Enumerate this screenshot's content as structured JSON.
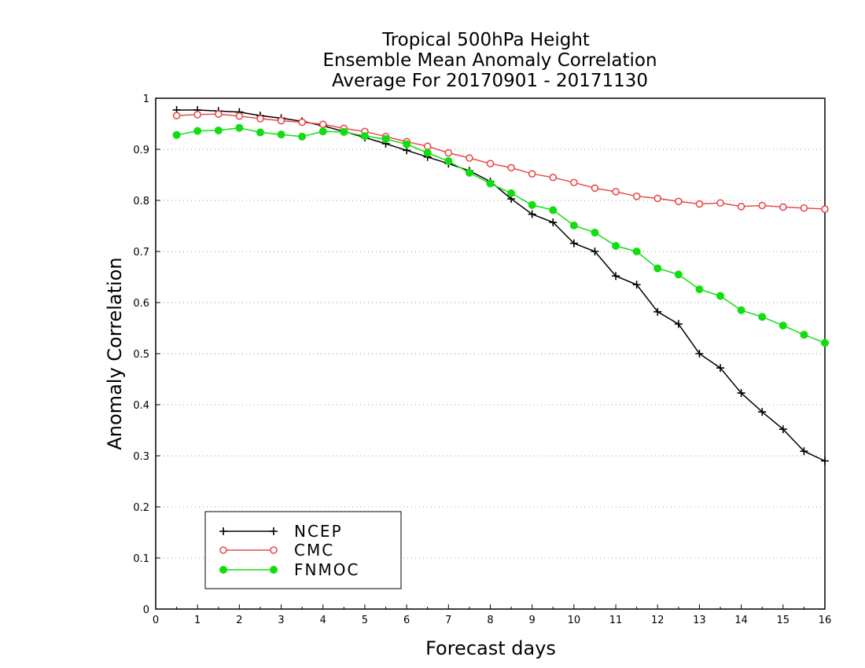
{
  "chart_data": {
    "type": "line",
    "title_lines": [
      "Tropical 500hPa Height",
      "Ensemble Mean Anomaly Correlation",
      "Average For 20170901 - 20171130"
    ],
    "xlabel": "Forecast days",
    "ylabel": "Anomaly Correlation",
    "xlim": [
      0,
      16
    ],
    "ylim": [
      0,
      1
    ],
    "x_ticks": [
      "0",
      "1",
      "2",
      "3",
      "4",
      "5",
      "6",
      "7",
      "8",
      "9",
      "10",
      "11",
      "12",
      "13",
      "14",
      "15",
      "16"
    ],
    "y_ticks": [
      "0",
      "0.1",
      "0.2",
      "0.3",
      "0.4",
      "0.5",
      "0.6",
      "0.7",
      "0.8",
      "0.9",
      "1"
    ],
    "grid": "horizontal-dotted",
    "legend_position": "bottom-left",
    "x": [
      0.5,
      1,
      1.5,
      2,
      2.5,
      3,
      3.5,
      4,
      4.5,
      5,
      5.5,
      6,
      6.5,
      7,
      7.5,
      8,
      8.5,
      9,
      9.5,
      10,
      10.5,
      11,
      11.5,
      12,
      12.5,
      13,
      13.5,
      14,
      14.5,
      15,
      15.5,
      16
    ],
    "series": [
      {
        "name": "NCEP",
        "color": "#000000",
        "marker": "plus",
        "values": [
          0.977,
          0.977,
          0.975,
          0.973,
          0.966,
          0.961,
          0.955,
          0.946,
          0.935,
          0.923,
          0.911,
          0.898,
          0.885,
          0.872,
          0.858,
          0.837,
          0.803,
          0.773,
          0.757,
          0.716,
          0.7,
          0.652,
          0.635,
          0.582,
          0.558,
          0.5,
          0.472,
          0.423,
          0.386,
          0.352,
          0.309,
          0.29
        ]
      },
      {
        "name": "CMC",
        "color": "#e84a4a",
        "marker": "open-circle",
        "values": [
          0.966,
          0.968,
          0.969,
          0.965,
          0.96,
          0.956,
          0.953,
          0.949,
          0.941,
          0.935,
          0.925,
          0.915,
          0.906,
          0.893,
          0.883,
          0.872,
          0.864,
          0.852,
          0.845,
          0.835,
          0.824,
          0.817,
          0.808,
          0.804,
          0.798,
          0.793,
          0.795,
          0.788,
          0.79,
          0.787,
          0.785,
          0.783
        ]
      },
      {
        "name": "FNMOC",
        "color": "#11dd11",
        "marker": "filled-circle",
        "values": [
          0.928,
          0.936,
          0.937,
          0.942,
          0.933,
          0.929,
          0.925,
          0.935,
          0.934,
          0.926,
          0.92,
          0.91,
          0.893,
          0.877,
          0.854,
          0.833,
          0.814,
          0.791,
          0.781,
          0.751,
          0.737,
          0.711,
          0.7,
          0.667,
          0.655,
          0.626,
          0.613,
          0.585,
          0.572,
          0.555,
          0.537,
          0.521
        ]
      }
    ]
  }
}
